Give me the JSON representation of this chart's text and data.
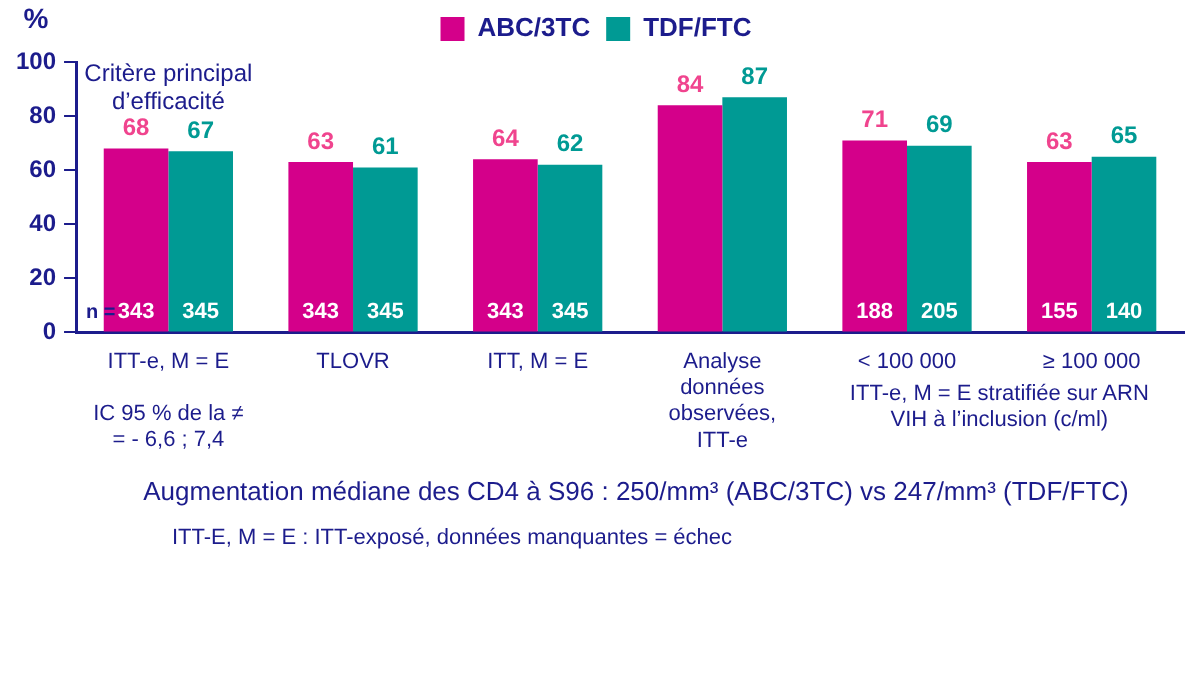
{
  "chart_data": {
    "type": "bar",
    "ylabel": "%",
    "categories": [
      "ITT-e, M = E",
      "TLOVR",
      "ITT, M = E",
      "Analyse données observées, ITT-e",
      "< 100 000",
      "≥ 100 000"
    ],
    "series": [
      {
        "name": "ABC/3TC",
        "color": "#d4008a",
        "values": [
          68,
          63,
          64,
          84,
          71,
          63
        ]
      },
      {
        "name": "TDF/FTC",
        "color": "#009a94",
        "values": [
          67,
          61,
          62,
          87,
          69,
          65
        ]
      }
    ],
    "ylim": [
      0,
      100
    ],
    "yticks": [
      0,
      20,
      40,
      60,
      80,
      100
    ],
    "grid": false,
    "legend": "top",
    "data_labels": true,
    "annotations": [
      "Critère principal d’efficacité",
      "IC 95 % de la ≠ = - 6,6 ; 7,4",
      "ITT-e, M = E stratifiée sur ARN VIH à l’inclusion (c/ml)",
      "Augmentation médiane des CD4 à S96 : 250/mm³ (ABC/3TC) vs 247/mm³ (TDF/FTC)",
      "ITT-E, M = E : ITT-exposé, données manquantes = échec",
      "n =",
      {
        "text": "343",
        "x": "ITT-e, M = E",
        "y": 0
      },
      {
        "text": "345",
        "x": "ITT-e, M = E",
        "y": 0
      },
      {
        "text": "343",
        "x": "TLOVR",
        "y": 0
      },
      {
        "text": "345",
        "x": "TLOVR",
        "y": 0
      },
      {
        "text": "343",
        "x": "ITT, M = E",
        "y": 0
      },
      {
        "text": "345",
        "x": "ITT, M = E",
        "y": 0
      },
      {
        "text": "188",
        "x": "< 100 000",
        "y": 0
      },
      {
        "text": "205",
        "x": "< 100 000",
        "y": 0
      },
      {
        "text": "155",
        "x": "≥ 100 000",
        "y": 0
      },
      {
        "text": "140",
        "x": "≥ 100 000",
        "y": 0
      }
    ]
  }
}
